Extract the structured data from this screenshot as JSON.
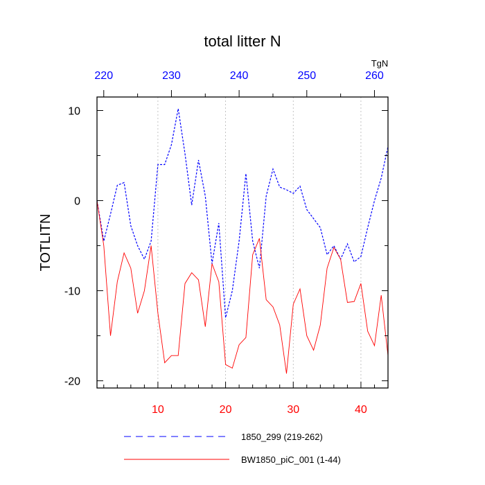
{
  "chart_data": {
    "type": "line",
    "title": "total litter N",
    "ylabel": "TOTLITN",
    "top_axis_label": "TgN",
    "xlim": [
      1,
      44
    ],
    "ylim": [
      -20.8,
      11.5
    ],
    "x": [
      1,
      2,
      3,
      4,
      5,
      6,
      7,
      8,
      9,
      10,
      11,
      12,
      13,
      14,
      15,
      16,
      17,
      18,
      19,
      20,
      21,
      22,
      23,
      24,
      25,
      26,
      27,
      28,
      29,
      30,
      31,
      32,
      33,
      34,
      35,
      36,
      37,
      38,
      39,
      40,
      41,
      42,
      43,
      44
    ],
    "bottom_ticks": [
      10,
      20,
      30,
      40
    ],
    "bottom_tick_labels": [
      "10",
      "20",
      "30",
      "40"
    ],
    "top_ticks": [
      2,
      12,
      22,
      32,
      42
    ],
    "top_tick_labels": [
      "220",
      "230",
      "240",
      "250",
      "260"
    ],
    "y_ticks": [
      10,
      0,
      -10,
      -20
    ],
    "y_tick_labels": [
      "10",
      "0",
      "-10",
      "-20"
    ],
    "gridlines_x": [
      10,
      20,
      30,
      40
    ],
    "series": [
      {
        "name": "1850_299 (219-262)",
        "color": "#0000ff",
        "dash": "dashed",
        "values": [
          0.0,
          -4.5,
          -1.5,
          1.7,
          2.0,
          -2.8,
          -5.0,
          -6.5,
          -4.5,
          4.0,
          4.0,
          6.2,
          10.2,
          5.2,
          -0.5,
          4.5,
          0.5,
          -7.0,
          -2.5,
          -13.0,
          -10.0,
          -4.5,
          3.0,
          -4.5,
          -7.5,
          0.5,
          3.5,
          1.5,
          1.2,
          0.8,
          1.6,
          -1.0,
          -2.0,
          -3.0,
          -6.0,
          -5.0,
          -6.5,
          -4.8,
          -6.8,
          -6.2,
          -3.0,
          0.0,
          2.5,
          6.0
        ]
      },
      {
        "name": "BW1850_piC_001 (1-44)",
        "color": "#ff0000",
        "dash": "solid",
        "values": [
          0.0,
          -5.0,
          -15.0,
          -9.0,
          -5.8,
          -7.5,
          -12.5,
          -10.0,
          -5.0,
          -12.5,
          -18.0,
          -17.2,
          -17.2,
          -9.2,
          -8.0,
          -8.8,
          -14.0,
          -7.0,
          -9.0,
          -18.2,
          -18.6,
          -16.0,
          -15.2,
          -6.0,
          -4.2,
          -11.0,
          -11.8,
          -13.8,
          -19.2,
          -11.5,
          -9.8,
          -15.0,
          -16.6,
          -13.8,
          -7.5,
          -5.2,
          -6.5,
          -11.3,
          -11.2,
          -9.2,
          -14.5,
          -16.1,
          -10.5,
          -17.2
        ]
      }
    ]
  }
}
